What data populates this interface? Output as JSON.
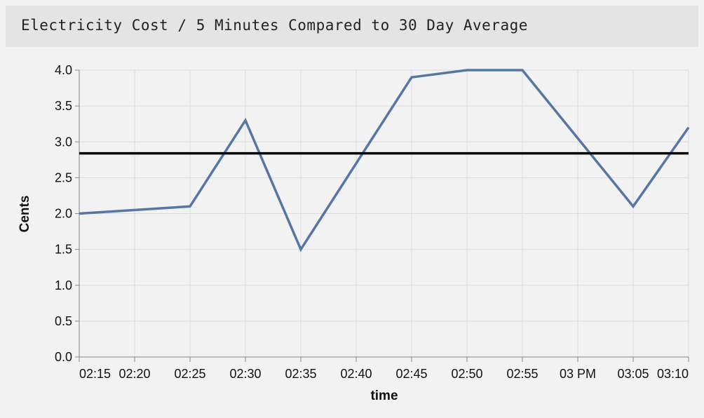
{
  "panel": {
    "title": "Electricity Cost / 5 Minutes Compared to 30 Day Average"
  },
  "colors": {
    "series": "#5677a4",
    "average": "#000000",
    "grid": "#dcdcdc",
    "axis": "#888888",
    "header_bg": "#e4e4e4",
    "background": "#f2f2f2"
  },
  "chart_data": {
    "type": "line",
    "xlabel": "time",
    "ylabel": "Cents",
    "x_ticks": [
      "02:15",
      "02:20",
      "02:25",
      "02:30",
      "02:35",
      "02:40",
      "02:45",
      "02:50",
      "02:55",
      "03 PM",
      "03:05",
      "03:10"
    ],
    "x_tick_minutes": [
      135,
      140,
      145,
      150,
      155,
      160,
      165,
      170,
      175,
      180,
      185,
      190
    ],
    "y_ticks": [
      "0.0",
      "0.5",
      "1.0",
      "1.5",
      "2.0",
      "2.5",
      "3.0",
      "3.5",
      "4.0"
    ],
    "ylim": [
      0,
      4
    ],
    "xlim_minutes": [
      135,
      190
    ],
    "grid": true,
    "series": [
      {
        "x_minutes": [
          135,
          145,
          150,
          155,
          165,
          170,
          175,
          180,
          185,
          190
        ],
        "x": [
          "02:15",
          "02:25",
          "02:30",
          "02:35",
          "02:45",
          "02:50",
          "02:55",
          "03:00",
          "03:05",
          "03:10"
        ],
        "values": [
          2.0,
          2.1,
          3.3,
          1.5,
          3.9,
          4.0,
          4.0,
          3.05,
          2.1,
          3.2
        ]
      }
    ],
    "reference_line": {
      "value": 2.84
    }
  }
}
